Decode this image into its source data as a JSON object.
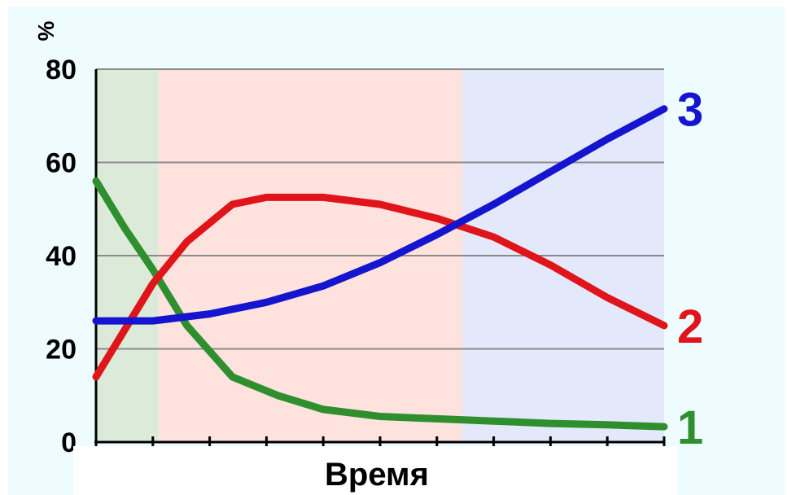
{
  "chart_data": {
    "type": "line",
    "ylabel": "%",
    "xlabel": "Время",
    "ylim": [
      0,
      80
    ],
    "yticks": [
      0,
      20,
      40,
      60,
      80
    ],
    "xlim": [
      0,
      10
    ],
    "x_tick_count": 11,
    "grid": true,
    "regions": [
      {
        "x_start": 0,
        "x_end": 1.1,
        "color": "#dcebd9"
      },
      {
        "x_start": 1.1,
        "x_end": 6.45,
        "color": "#fde2dd"
      },
      {
        "x_start": 6.45,
        "x_end": 10,
        "color": "#e3e8fa"
      }
    ],
    "series": [
      {
        "name": "1",
        "color": "#2f8f2f",
        "x": [
          0,
          0.5,
          1.0,
          1.6,
          2.4,
          3.2,
          4.0,
          5.0,
          6.0,
          7.0,
          8.0,
          9.0,
          10.0
        ],
        "y": [
          56,
          46,
          37,
          25,
          14,
          10,
          7,
          5.5,
          5,
          4.5,
          4,
          3.7,
          3.3
        ]
      },
      {
        "name": "2",
        "color": "#e0151b",
        "x": [
          0,
          0.5,
          1.0,
          1.6,
          2.4,
          3.0,
          4.0,
          5.0,
          6.0,
          7.0,
          8.0,
          9.0,
          10.0
        ],
        "y": [
          14,
          24,
          34,
          43,
          51,
          52.5,
          52.5,
          51,
          48,
          44,
          38,
          31,
          25
        ]
      },
      {
        "name": "3",
        "color": "#1515d0",
        "x": [
          0,
          0.5,
          1.0,
          2.0,
          3.0,
          4.0,
          5.0,
          6.0,
          7.0,
          8.0,
          9.0,
          10.0
        ],
        "y": [
          26,
          26,
          26,
          27.5,
          30,
          33.5,
          38.5,
          44.5,
          51,
          58,
          65,
          71.5
        ]
      }
    ]
  }
}
